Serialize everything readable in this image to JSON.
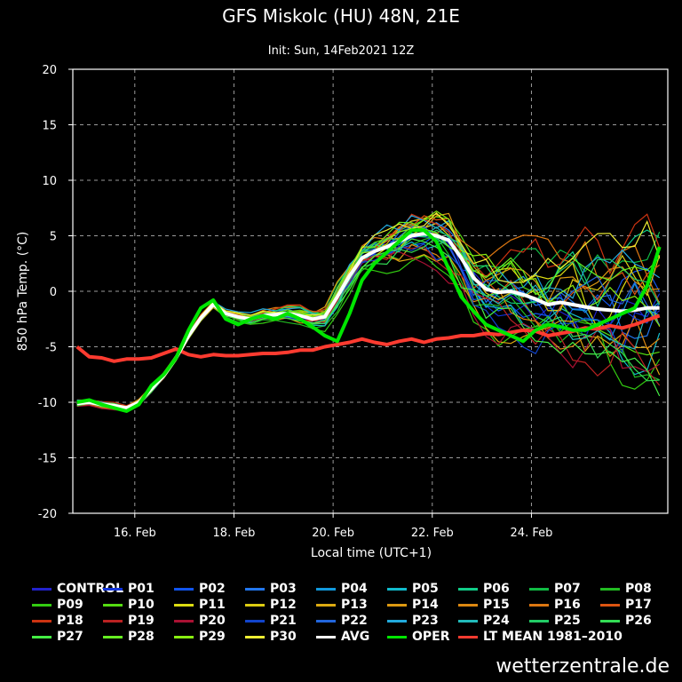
{
  "title": "GFS Miskolc (HU) 48N, 21E",
  "subtitle": "Init: Sun, 14Feb2021 12Z",
  "credit": "wetterzentrale.de",
  "chart_data": {
    "type": "line",
    "xlabel": "Local time (UTC+1)",
    "ylabel": "850 hPa Temp. (°C)",
    "xlim_hours_from_feb15_00": [
      -6,
      282
    ],
    "ylim": [
      -20,
      20
    ],
    "yticks": [
      -20,
      -15,
      -10,
      -5,
      0,
      5,
      10,
      15,
      20
    ],
    "xticks": [
      {
        "label": "16. Feb",
        "hours": 24
      },
      {
        "label": "18. Feb",
        "hours": 72
      },
      {
        "label": "20. Feb",
        "hours": 120
      },
      {
        "label": "22. Feb",
        "hours": 168
      },
      {
        "label": "24. Feb",
        "hours": 216
      }
    ],
    "grid": true,
    "x_hours": [
      -4,
      2,
      8,
      14,
      20,
      26,
      32,
      38,
      44,
      50,
      56,
      62,
      68,
      74,
      80,
      86,
      92,
      98,
      104,
      110,
      116,
      122,
      128,
      134,
      140,
      146,
      152,
      158,
      164,
      170,
      176,
      182,
      188,
      194,
      200,
      206,
      212,
      218,
      224,
      230,
      236,
      242,
      248,
      254,
      260,
      266,
      272,
      278
    ],
    "series": [
      {
        "name": "AVG",
        "color": "#ffffff",
        "width": 4,
        "values": [
          -10.1,
          -10.0,
          -10.2,
          -10.3,
          -10.5,
          -10.0,
          -8.8,
          -7.6,
          -6.0,
          -4.0,
          -2.4,
          -1.2,
          -2.0,
          -2.3,
          -2.5,
          -2.2,
          -2.1,
          -2.0,
          -2.2,
          -2.5,
          -2.3,
          -0.5,
          1.4,
          3.0,
          3.6,
          4.0,
          4.5,
          5.0,
          5.2,
          5.0,
          4.6,
          3.0,
          1.2,
          0.2,
          -0.1,
          0.0,
          -0.3,
          -0.7,
          -1.2,
          -1.0,
          -1.2,
          -1.4,
          -1.6,
          -1.7,
          -1.8,
          -1.7,
          -1.5,
          -1.5
        ]
      },
      {
        "name": "OPER",
        "color": "#00e600",
        "width": 4,
        "values": [
          -10.0,
          -9.8,
          -10.2,
          -10.5,
          -10.8,
          -10.2,
          -8.5,
          -7.5,
          -6.0,
          -3.5,
          -1.5,
          -0.8,
          -2.5,
          -3.0,
          -2.5,
          -2.2,
          -2.5,
          -2.0,
          -2.5,
          -3.2,
          -4.0,
          -4.5,
          -2.0,
          1.0,
          2.5,
          3.5,
          4.5,
          5.5,
          5.5,
          4.5,
          2.0,
          -0.5,
          -1.8,
          -3.0,
          -3.5,
          -4.0,
          -4.5,
          -3.5,
          -3.0,
          -3.2,
          -3.5,
          -3.5,
          -3.0,
          -2.5,
          -2.0,
          -1.5,
          0.5,
          4.0
        ]
      },
      {
        "name": "LT MEAN 1981-2010",
        "color": "#ff3b30",
        "width": 4,
        "values": [
          -5.0,
          -5.9,
          -6.0,
          -6.3,
          -6.1,
          -6.1,
          -6.0,
          -5.6,
          -5.2,
          -5.7,
          -5.9,
          -5.7,
          -5.8,
          -5.8,
          -5.7,
          -5.6,
          -5.6,
          -5.5,
          -5.3,
          -5.3,
          -5.0,
          -4.8,
          -4.6,
          -4.3,
          -4.6,
          -4.8,
          -4.5,
          -4.3,
          -4.6,
          -4.3,
          -4.2,
          -4.0,
          -4.0,
          -3.8,
          -3.9,
          -3.7,
          -3.5,
          -3.6,
          -4.0,
          -3.8,
          -3.6,
          -3.3,
          -3.4,
          -3.1,
          -3.3,
          -3.0,
          -2.6,
          -2.2
        ]
      }
    ],
    "legend": [
      {
        "label": "CONTROL",
        "color": "#2222cc"
      },
      {
        "label": "P01",
        "color": "#1133dd"
      },
      {
        "label": "P02",
        "color": "#1155ee"
      },
      {
        "label": "P03",
        "color": "#2277ee"
      },
      {
        "label": "P04",
        "color": "#1199dd"
      },
      {
        "label": "P05",
        "color": "#11bbcc"
      },
      {
        "label": "P06",
        "color": "#11cc88"
      },
      {
        "label": "P07",
        "color": "#11bb44"
      },
      {
        "label": "P08",
        "color": "#22bb22"
      },
      {
        "label": "P09",
        "color": "#33cc11"
      },
      {
        "label": "P10",
        "color": "#55dd11"
      },
      {
        "label": "P11",
        "color": "#dddd11"
      },
      {
        "label": "P12",
        "color": "#ddcc11"
      },
      {
        "label": "P13",
        "color": "#ddaa11"
      },
      {
        "label": "P14",
        "color": "#dd9911"
      },
      {
        "label": "P15",
        "color": "#dd8811"
      },
      {
        "label": "P16",
        "color": "#dd7711"
      },
      {
        "label": "P17",
        "color": "#dd5511"
      },
      {
        "label": "P18",
        "color": "#cc3311"
      },
      {
        "label": "P19",
        "color": "#bb2222"
      },
      {
        "label": "P20",
        "color": "#aa1133"
      },
      {
        "label": "P21",
        "color": "#1144cc"
      },
      {
        "label": "P22",
        "color": "#2266dd"
      },
      {
        "label": "P23",
        "color": "#22aadd"
      },
      {
        "label": "P24",
        "color": "#22bbbb"
      },
      {
        "label": "P25",
        "color": "#22cc66"
      },
      {
        "label": "P26",
        "color": "#33dd55"
      },
      {
        "label": "P27",
        "color": "#44ee44"
      },
      {
        "label": "P28",
        "color": "#66ee22"
      },
      {
        "label": "P29",
        "color": "#88ee11"
      },
      {
        "label": "P30",
        "color": "#eeee33"
      },
      {
        "label": "AVG",
        "color": "#ffffff"
      },
      {
        "label": "OPER",
        "color": "#00e600"
      },
      {
        "label": "LT MEAN 1981–2010",
        "color": "#ff3b30"
      }
    ]
  }
}
